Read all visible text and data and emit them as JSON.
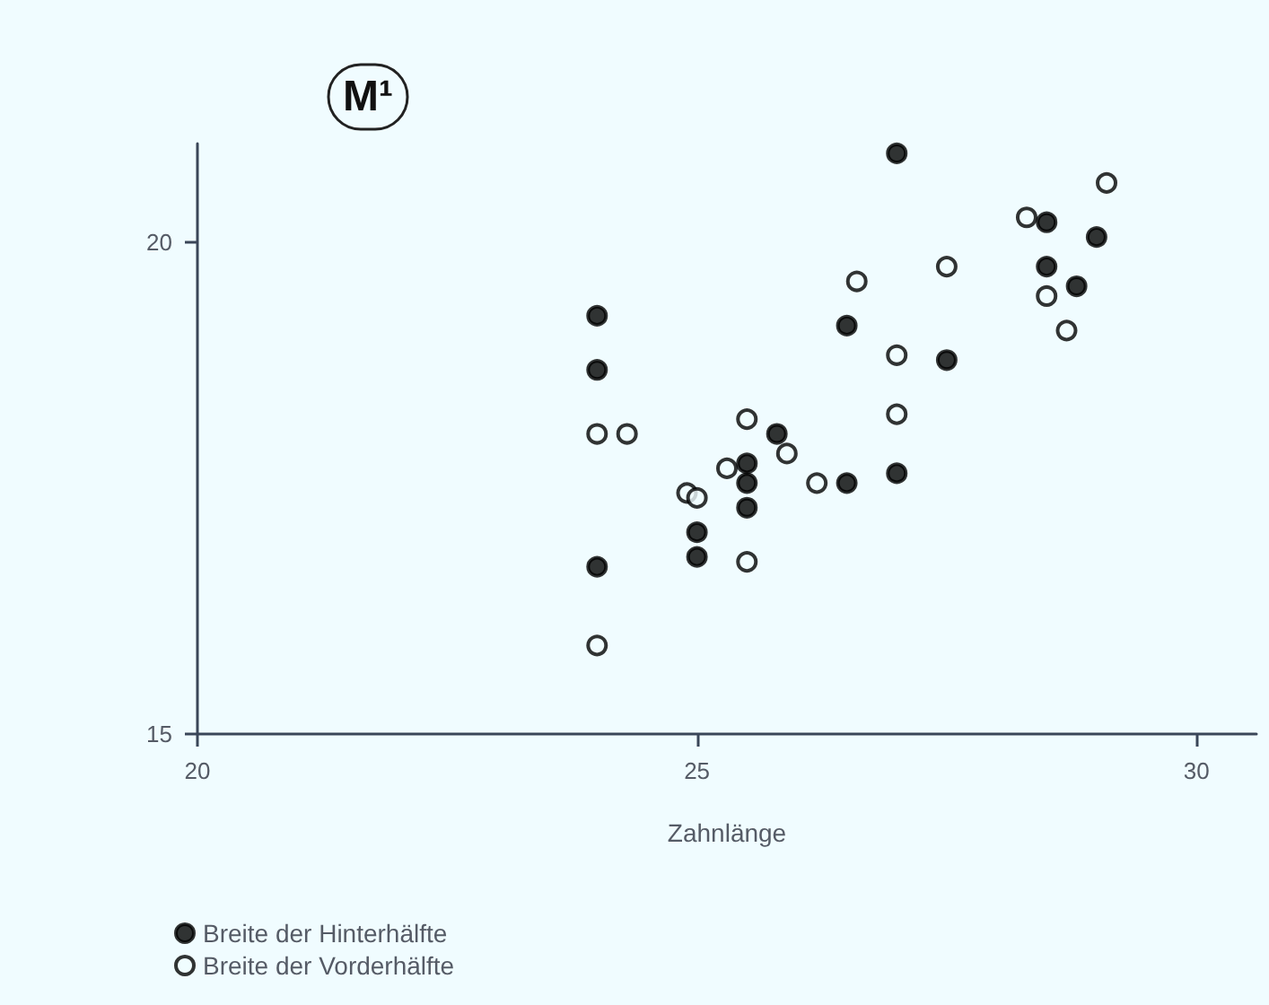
{
  "chart_data": {
    "type": "scatter",
    "title": "M¹",
    "xlabel": "Zahnlänge",
    "xlim": [
      20,
      30.6
    ],
    "ylim": [
      15,
      21
    ],
    "xticks": [
      20,
      25,
      30
    ],
    "yticks": [
      15,
      20
    ],
    "grid": false,
    "legend": "bottom left",
    "marker": "circle",
    "series": [
      {
        "name": "Breite der Hinterhälfte",
        "color": "#000000",
        "x": [
          27.0,
          28.5,
          29.0,
          28.5,
          28.8,
          24.0,
          24.0,
          26.5,
          27.5,
          25.8,
          25.5,
          25.5,
          25.5,
          26.5,
          27.0,
          25.0,
          25.0,
          24.0
        ],
        "values": [
          20.9,
          20.2,
          20.05,
          19.75,
          19.55,
          19.25,
          18.7,
          19.15,
          18.8,
          18.05,
          17.75,
          17.55,
          17.3,
          17.55,
          17.65,
          17.05,
          16.8,
          16.7
        ]
      },
      {
        "name": "Breite der Vorderhälfte",
        "color": "#f0fcff",
        "x": [
          29.1,
          28.3,
          27.5,
          26.6,
          28.5,
          28.7,
          27.0,
          27.0,
          24.0,
          24.3,
          25.5,
          25.9,
          25.3,
          26.2,
          24.9,
          25.0,
          25.5,
          24.0
        ],
        "values": [
          20.6,
          20.25,
          19.75,
          19.6,
          19.45,
          19.1,
          18.85,
          18.25,
          18.05,
          18.05,
          18.2,
          17.85,
          17.7,
          17.55,
          17.45,
          17.4,
          16.75,
          15.9
        ]
      }
    ]
  }
}
